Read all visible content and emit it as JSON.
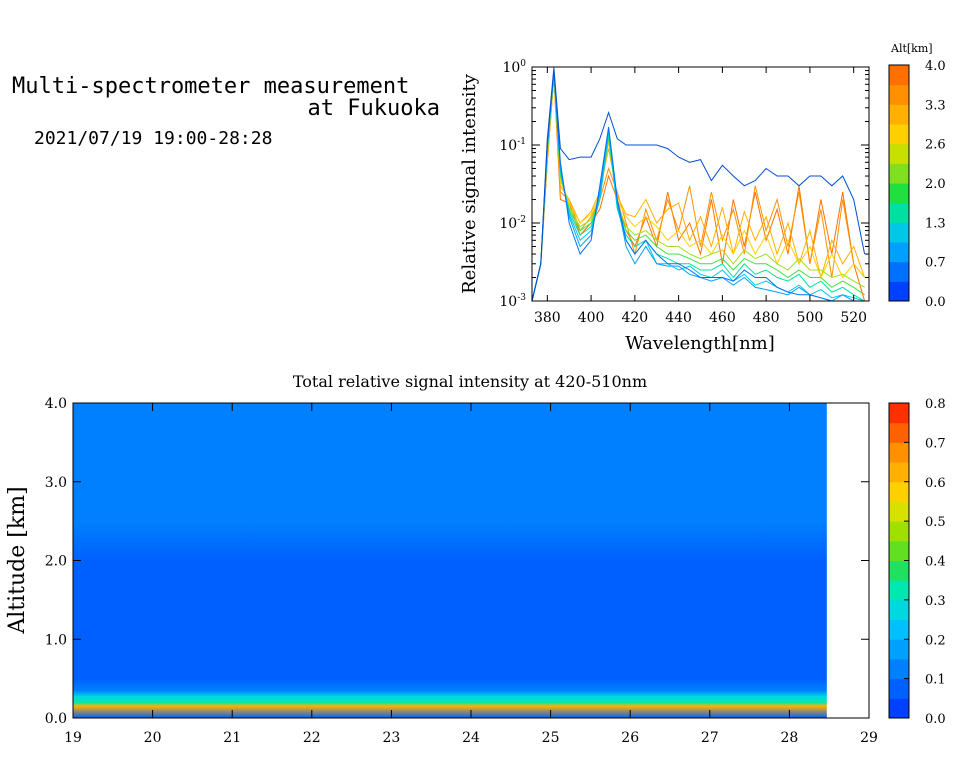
{
  "header": {
    "title_line1": "Multi-spectrometer measurement",
    "title_line2": "at Fukuoka",
    "datetime": "2021/07/19 19:00-28:28"
  },
  "chart_data": [
    {
      "type": "line",
      "xlabel": "Wavelength[nm]",
      "ylabel": "Relative signal intensity",
      "xlim": [
        373,
        527
      ],
      "ylim": [
        0.001,
        1
      ],
      "yscale": "log",
      "xticks": [
        380,
        400,
        420,
        440,
        460,
        480,
        500,
        520
      ],
      "yticks": [
        {
          "base": "10",
          "exp": "0",
          "value": 1
        },
        {
          "base": "10",
          "exp": "-1",
          "value": 0.1
        },
        {
          "base": "10",
          "exp": "-2",
          "value": 0.01
        },
        {
          "base": "10",
          "exp": "-3",
          "value": 0.001
        }
      ],
      "colorbar": {
        "label": "Alt[km]",
        "ticks": [
          "4.0",
          "3.3",
          "2.6",
          "2.0",
          "1.3",
          "0.7",
          "0.0"
        ],
        "colors": [
          "#0040ff",
          "#0070ff",
          "#00a0ff",
          "#00c8e6",
          "#00e0a0",
          "#20e040",
          "#80e020",
          "#c8e000",
          "#ffd000",
          "#ffb000",
          "#ff9000",
          "#ff7000"
        ]
      },
      "series": [
        {
          "color": "#0050d0",
          "x": [
            373,
            377,
            380,
            383,
            386,
            390,
            395,
            400,
            404,
            408,
            412,
            416,
            420,
            425,
            430,
            435,
            440,
            445,
            450,
            455,
            460,
            465,
            470,
            475,
            480,
            485,
            490,
            495,
            500,
            505,
            510,
            515,
            520,
            525
          ],
          "y": [
            0.001,
            0.003,
            0.12,
            0.98,
            0.09,
            0.065,
            0.07,
            0.07,
            0.12,
            0.26,
            0.12,
            0.1,
            0.1,
            0.1,
            0.1,
            0.09,
            0.07,
            0.06,
            0.065,
            0.035,
            0.055,
            0.04,
            0.03,
            0.035,
            0.05,
            0.04,
            0.04,
            0.03,
            0.04,
            0.04,
            0.03,
            0.04,
            0.02,
            0.004
          ]
        },
        {
          "color": "#0070ff",
          "x": [
            373,
            377,
            380,
            383,
            386,
            390,
            395,
            400,
            404,
            408,
            412,
            416,
            420,
            425,
            430,
            435,
            440,
            445,
            450,
            455,
            460,
            465,
            470,
            475,
            480,
            485,
            490,
            495,
            500,
            505,
            510,
            515,
            520,
            525
          ],
          "y": [
            0.001,
            0.003,
            0.1,
            0.9,
            0.06,
            0.01,
            0.004,
            0.006,
            0.03,
            0.17,
            0.02,
            0.006,
            0.004,
            0.006,
            0.004,
            0.003,
            0.003,
            0.0025,
            0.002,
            0.002,
            0.002,
            0.0018,
            0.0025,
            0.002,
            0.002,
            0.0015,
            0.0013,
            0.0012,
            0.0012,
            0.0011,
            0.001,
            0.001,
            0.001,
            0.001
          ]
        },
        {
          "color": "#00a0ff",
          "x": [
            373,
            377,
            380,
            383,
            386,
            390,
            395,
            400,
            404,
            408,
            412,
            416,
            420,
            425,
            430,
            435,
            440,
            445,
            450,
            455,
            460,
            465,
            470,
            475,
            480,
            485,
            490,
            495,
            500,
            505,
            510,
            515,
            520,
            525
          ],
          "y": [
            0.001,
            0.003,
            0.1,
            0.88,
            0.05,
            0.012,
            0.005,
            0.007,
            0.025,
            0.16,
            0.018,
            0.005,
            0.003,
            0.005,
            0.003,
            0.0028,
            0.0028,
            0.0022,
            0.002,
            0.0018,
            0.002,
            0.0016,
            0.002,
            0.0015,
            0.0014,
            0.0013,
            0.0012,
            0.0015,
            0.0012,
            0.0011,
            0.001,
            0.0012,
            0.001,
            0.001
          ]
        },
        {
          "color": "#00c8e6",
          "x": [
            373,
            377,
            380,
            383,
            386,
            390,
            395,
            400,
            404,
            408,
            412,
            416,
            420,
            425,
            430,
            435,
            440,
            445,
            450,
            455,
            460,
            465,
            470,
            475,
            480,
            485,
            490,
            495,
            500,
            505,
            510,
            515,
            520,
            525
          ],
          "y": [
            0.001,
            0.003,
            0.09,
            0.87,
            0.05,
            0.013,
            0.006,
            0.008,
            0.02,
            0.15,
            0.016,
            0.006,
            0.004,
            0.006,
            0.003,
            0.003,
            0.0025,
            0.0028,
            0.0022,
            0.002,
            0.0025,
            0.0018,
            0.0022,
            0.0016,
            0.0018,
            0.0015,
            0.0013,
            0.0016,
            0.0012,
            0.0014,
            0.0011,
            0.0012,
            0.0011,
            0.001
          ]
        },
        {
          "color": "#00e0a0",
          "x": [
            373,
            377,
            380,
            383,
            386,
            390,
            395,
            400,
            404,
            408,
            412,
            416,
            420,
            425,
            430,
            435,
            440,
            445,
            450,
            455,
            460,
            465,
            470,
            475,
            480,
            485,
            490,
            495,
            500,
            505,
            510,
            515,
            520,
            525
          ],
          "y": [
            0.001,
            0.003,
            0.09,
            0.86,
            0.045,
            0.014,
            0.007,
            0.009,
            0.02,
            0.14,
            0.015,
            0.007,
            0.005,
            0.006,
            0.004,
            0.0035,
            0.003,
            0.003,
            0.0025,
            0.0025,
            0.003,
            0.002,
            0.003,
            0.0022,
            0.0025,
            0.002,
            0.0018,
            0.0022,
            0.0015,
            0.0018,
            0.0013,
            0.0015,
            0.0012,
            0.001
          ]
        },
        {
          "color": "#40e040",
          "x": [
            373,
            377,
            380,
            383,
            386,
            390,
            395,
            400,
            404,
            408,
            412,
            416,
            420,
            425,
            430,
            435,
            440,
            445,
            450,
            455,
            460,
            465,
            470,
            475,
            480,
            485,
            490,
            495,
            500,
            505,
            510,
            515,
            520,
            525
          ],
          "y": [
            0.001,
            0.003,
            0.08,
            0.85,
            0.04,
            0.015,
            0.008,
            0.01,
            0.02,
            0.13,
            0.016,
            0.008,
            0.006,
            0.007,
            0.005,
            0.004,
            0.004,
            0.0035,
            0.003,
            0.003,
            0.0035,
            0.0025,
            0.0035,
            0.003,
            0.003,
            0.0025,
            0.002,
            0.0025,
            0.002,
            0.002,
            0.0015,
            0.0018,
            0.0015,
            0.0012
          ]
        },
        {
          "color": "#a0e020",
          "x": [
            373,
            377,
            380,
            383,
            386,
            390,
            395,
            400,
            404,
            408,
            412,
            416,
            420,
            425,
            430,
            435,
            440,
            445,
            450,
            455,
            460,
            465,
            470,
            475,
            480,
            485,
            490,
            495,
            500,
            505,
            510,
            515,
            520,
            525
          ],
          "y": [
            0.001,
            0.003,
            0.08,
            0.84,
            0.04,
            0.016,
            0.009,
            0.011,
            0.02,
            0.12,
            0.018,
            0.009,
            0.007,
            0.008,
            0.006,
            0.005,
            0.005,
            0.004,
            0.0035,
            0.004,
            0.0045,
            0.003,
            0.0045,
            0.0035,
            0.004,
            0.003,
            0.0025,
            0.0035,
            0.0025,
            0.0025,
            0.002,
            0.0022,
            0.0018,
            0.0015
          ]
        },
        {
          "color": "#ffd000",
          "x": [
            373,
            377,
            380,
            383,
            386,
            390,
            395,
            400,
            404,
            408,
            412,
            416,
            420,
            425,
            430,
            435,
            440,
            445,
            450,
            455,
            460,
            465,
            470,
            475,
            480,
            485,
            490,
            495,
            500,
            505,
            510,
            515,
            520,
            525
          ],
          "y": [
            0.001,
            0.003,
            0.07,
            0.82,
            0.035,
            0.018,
            0.01,
            0.013,
            0.022,
            0.11,
            0.02,
            0.012,
            0.009,
            0.012,
            0.009,
            0.006,
            0.008,
            0.005,
            0.006,
            0.004,
            0.007,
            0.004,
            0.008,
            0.004,
            0.007,
            0.003,
            0.006,
            0.003,
            0.005,
            0.002,
            0.004,
            0.002,
            0.003,
            0.002
          ]
        },
        {
          "color": "#ffb000",
          "x": [
            373,
            377,
            380,
            383,
            386,
            390,
            395,
            400,
            404,
            408,
            412,
            416,
            420,
            425,
            430,
            435,
            440,
            445,
            450,
            455,
            460,
            465,
            470,
            475,
            480,
            485,
            490,
            495,
            500,
            505,
            510,
            515,
            520,
            525
          ],
          "y": [
            0.001,
            0.003,
            0.07,
            0.8,
            0.03,
            0.02,
            0.01,
            0.014,
            0.025,
            0.09,
            0.022,
            0.013,
            0.012,
            0.02,
            0.01,
            0.015,
            0.018,
            0.006,
            0.012,
            0.005,
            0.016,
            0.004,
            0.014,
            0.006,
            0.012,
            0.004,
            0.01,
            0.003,
            0.008,
            0.002,
            0.006,
            0.003,
            0.005,
            0.002
          ]
        },
        {
          "color": "#ff9000",
          "x": [
            373,
            377,
            380,
            383,
            386,
            390,
            395,
            400,
            404,
            408,
            412,
            416,
            420,
            425,
            430,
            435,
            440,
            445,
            450,
            455,
            460,
            465,
            470,
            475,
            480,
            485,
            490,
            495,
            500,
            505,
            510,
            515,
            520,
            525
          ],
          "y": [
            0.001,
            0.003,
            0.06,
            0.78,
            0.025,
            0.02,
            0.008,
            0.012,
            0.02,
            0.05,
            0.025,
            0.01,
            0.004,
            0.015,
            0.006,
            0.02,
            0.008,
            0.03,
            0.005,
            0.025,
            0.006,
            0.015,
            0.004,
            0.03,
            0.008,
            0.02,
            0.005,
            0.025,
            0.003,
            0.015,
            0.002,
            0.02,
            0.003,
            0.002
          ]
        },
        {
          "color": "#ff7000",
          "x": [
            373,
            377,
            380,
            383,
            386,
            390,
            395,
            400,
            404,
            408,
            412,
            416,
            420,
            425,
            430,
            435,
            440,
            445,
            450,
            455,
            460,
            465,
            470,
            475,
            480,
            485,
            490,
            495,
            500,
            505,
            510,
            515,
            520,
            525
          ],
          "y": [
            0.001,
            0.003,
            0.06,
            0.75,
            0.02,
            0.018,
            0.007,
            0.01,
            0.015,
            0.04,
            0.02,
            0.008,
            0.005,
            0.012,
            0.005,
            0.025,
            0.006,
            0.01,
            0.004,
            0.02,
            0.003,
            0.02,
            0.005,
            0.025,
            0.006,
            0.015,
            0.004,
            0.03,
            0.003,
            0.02,
            0.004,
            0.025,
            0.003,
            0.001
          ]
        }
      ]
    },
    {
      "type": "heatmap",
      "title": "Total relative signal intensity at 420-510nm",
      "ylabel": "Altitude [km]",
      "xlabel": "",
      "xlim": [
        19,
        29
      ],
      "ylim": [
        0,
        4
      ],
      "xticks": [
        "19",
        "20",
        "21",
        "22",
        "23",
        "24",
        "25",
        "26",
        "27",
        "28",
        "29"
      ],
      "yticks": [
        "0.0",
        "1.0",
        "2.0",
        "3.0",
        "4.0"
      ],
      "data_x_end": 28.47,
      "colorbar": {
        "ticks": [
          "0.0",
          "0.1",
          "0.2",
          "0.3",
          "0.4",
          "0.5",
          "0.6",
          "0.7",
          "0.8"
        ],
        "colors": [
          "#0040ff",
          "#0060ff",
          "#0080ff",
          "#00a0ff",
          "#00c0ff",
          "#00d8e0",
          "#00e8b0",
          "#20e060",
          "#60e020",
          "#a0e000",
          "#d8e000",
          "#ffd000",
          "#ffb000",
          "#ff9000",
          "#ff6000",
          "#ff3000"
        ]
      },
      "profile": [
        {
          "alt": 0.0,
          "value": 0.05
        },
        {
          "alt": 0.15,
          "value": 0.62
        },
        {
          "alt": 0.2,
          "value": 0.35
        },
        {
          "alt": 0.27,
          "value": 0.26
        },
        {
          "alt": 0.35,
          "value": 0.12
        },
        {
          "alt": 0.5,
          "value": 0.07
        },
        {
          "alt": 1.0,
          "value": 0.06
        },
        {
          "alt": 1.5,
          "value": 0.075
        },
        {
          "alt": 2.0,
          "value": 0.09
        },
        {
          "alt": 2.5,
          "value": 0.12
        },
        {
          "alt": 3.0,
          "value": 0.13
        },
        {
          "alt": 3.5,
          "value": 0.15
        },
        {
          "alt": 4.0,
          "value": 0.14
        }
      ]
    }
  ]
}
